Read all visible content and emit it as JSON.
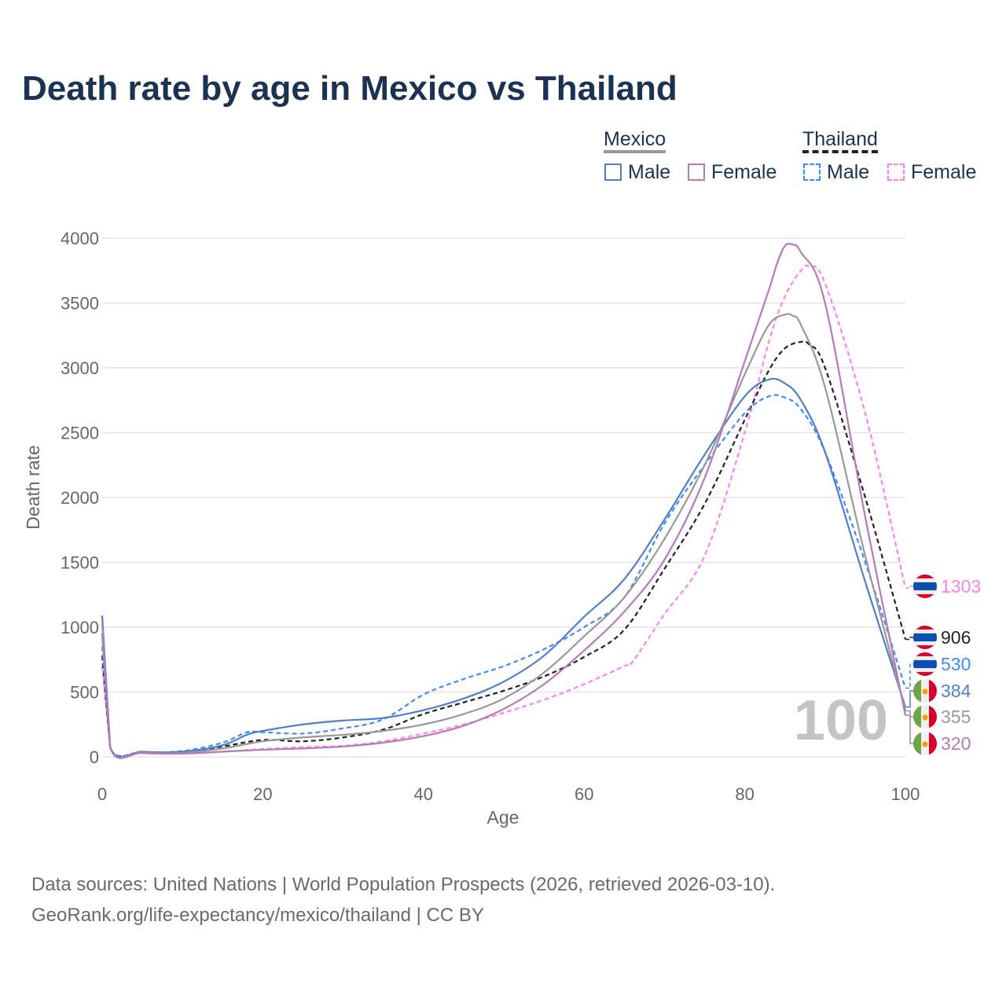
{
  "title": "Death rate by age in Mexico vs Thailand",
  "legend": {
    "groups": [
      {
        "name": "Mexico",
        "items": [
          "Male",
          "Female"
        ]
      },
      {
        "name": "Thailand",
        "items": [
          "Male",
          "Female"
        ]
      }
    ]
  },
  "source": {
    "line1": "Data sources: United Nations | World Population Prospects (2026, retrieved 2026-03-10).",
    "line2": "GeoRank.org/life-expectancy/mexico/thailand | CC BY"
  },
  "age_indicator": "100",
  "chart_data": {
    "type": "line",
    "title": "Death rate by age in Mexico vs Thailand",
    "xlabel": "Age",
    "ylabel": "Death rate",
    "xlim": [
      0,
      100
    ],
    "ylim": [
      0,
      4000
    ],
    "xticks": [
      "0",
      "20",
      "40",
      "60",
      "80",
      "100"
    ],
    "yticks": [
      "0",
      "500",
      "1000",
      "1500",
      "2000",
      "2500",
      "3000",
      "3500",
      "4000"
    ],
    "grid": true,
    "legend_position": "top-right",
    "series": [
      {
        "name": "Thailand Female",
        "country": "Thailand",
        "color": "#ff80ee",
        "dash": true,
        "end_label": "1303",
        "x": [
          0,
          1,
          5,
          10,
          15,
          20,
          25,
          30,
          35,
          40,
          45,
          50,
          55,
          60,
          65,
          66,
          70,
          75,
          80,
          83,
          85,
          87,
          88,
          90,
          95,
          100
        ],
        "y": [
          700,
          65,
          30,
          25,
          40,
          60,
          75,
          85,
          120,
          180,
          250,
          340,
          440,
          560,
          700,
          730,
          1100,
          1550,
          2500,
          3200,
          3550,
          3750,
          3780,
          3650,
          2650,
          1303
        ]
      },
      {
        "name": "Thailand",
        "country": "Thailand",
        "color": "#222222",
        "dash": true,
        "end_label": "906",
        "x": [
          0,
          1,
          5,
          10,
          15,
          20,
          25,
          30,
          35,
          40,
          45,
          50,
          55,
          60,
          65,
          70,
          75,
          80,
          83,
          85,
          87,
          88,
          90,
          95,
          100
        ],
        "y": [
          780,
          70,
          35,
          35,
          80,
          130,
          120,
          150,
          210,
          330,
          420,
          510,
          620,
          770,
          980,
          1450,
          1950,
          2600,
          2980,
          3150,
          3200,
          3180,
          3000,
          2000,
          906
        ]
      },
      {
        "name": "Thailand Male",
        "country": "Thailand",
        "color": "#3d8bff",
        "dash": true,
        "end_label": "530",
        "x": [
          0,
          1,
          5,
          10,
          15,
          18,
          20,
          25,
          30,
          35,
          40,
          45,
          50,
          55,
          60,
          65,
          70,
          75,
          80,
          83,
          85,
          87,
          90,
          95,
          100
        ],
        "y": [
          850,
          75,
          40,
          45,
          110,
          190,
          190,
          180,
          220,
          290,
          480,
          600,
          700,
          830,
          1000,
          1230,
          1800,
          2250,
          2650,
          2780,
          2770,
          2680,
          2350,
          1500,
          530
        ]
      },
      {
        "name": "Mexico Male",
        "country": "Mexico",
        "color": "#4f7fcc",
        "dash": false,
        "end_label": "384",
        "x": [
          0,
          1,
          5,
          10,
          15,
          18,
          20,
          25,
          30,
          35,
          40,
          45,
          50,
          55,
          60,
          65,
          70,
          75,
          80,
          83,
          85,
          87,
          90,
          95,
          100
        ],
        "y": [
          1090,
          80,
          40,
          40,
          90,
          170,
          200,
          250,
          280,
          300,
          360,
          450,
          580,
          780,
          1080,
          1370,
          1830,
          2330,
          2780,
          2910,
          2880,
          2750,
          2350,
          1350,
          384
        ]
      },
      {
        "name": "Mexico",
        "country": "Mexico",
        "color": "#999999",
        "dash": false,
        "end_label": "355",
        "x": [
          0,
          1,
          5,
          10,
          15,
          20,
          25,
          30,
          35,
          40,
          45,
          50,
          55,
          60,
          65,
          70,
          75,
          80,
          83,
          85,
          86,
          87,
          90,
          95,
          100
        ],
        "y": [
          1020,
          75,
          35,
          30,
          65,
          120,
          150,
          170,
          200,
          250,
          330,
          450,
          650,
          930,
          1230,
          1680,
          2250,
          2950,
          3330,
          3410,
          3400,
          3330,
          2850,
          1550,
          355
        ]
      },
      {
        "name": "Mexico Female",
        "country": "Mexico",
        "color": "#b57ab8",
        "dash": false,
        "end_label": "320",
        "x": [
          0,
          1,
          5,
          10,
          15,
          20,
          25,
          30,
          35,
          40,
          45,
          50,
          55,
          60,
          65,
          70,
          75,
          80,
          83,
          84,
          85,
          86,
          87,
          90,
          95,
          100
        ],
        "y": [
          950,
          70,
          30,
          25,
          40,
          55,
          65,
          80,
          110,
          160,
          240,
          370,
          560,
          820,
          1120,
          1520,
          2150,
          3050,
          3600,
          3800,
          3940,
          3950,
          3890,
          3500,
          1850,
          320
        ]
      }
    ]
  }
}
